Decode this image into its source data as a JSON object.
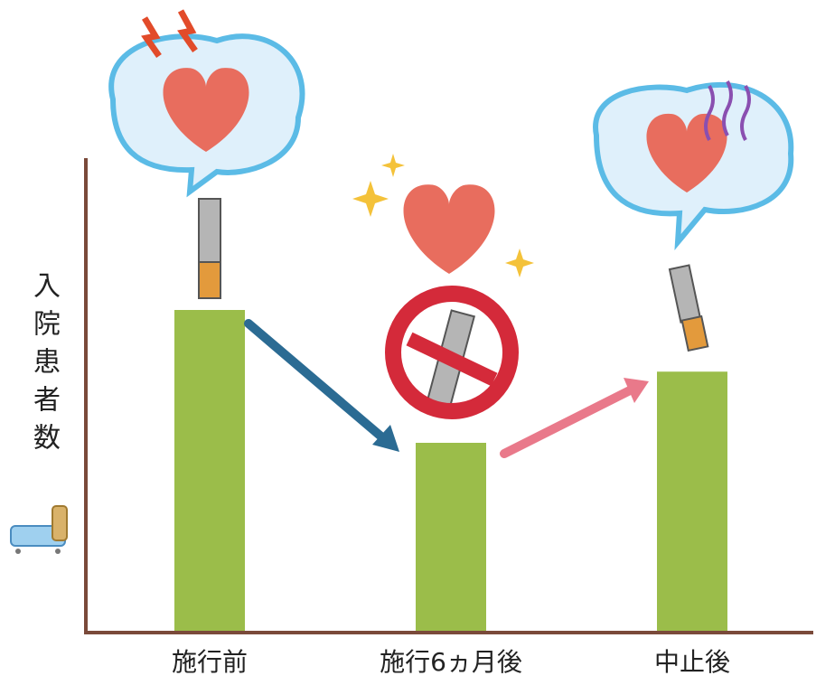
{
  "chart_data": {
    "type": "bar",
    "y_axis_label": "入院患者数",
    "categories": [
      "施行前",
      "施行6ヵ月後",
      "中止後"
    ],
    "values": [
      68,
      40,
      55
    ],
    "color": "#9bbd4a",
    "ylim": [
      0,
      100
    ],
    "grid": false
  }
}
